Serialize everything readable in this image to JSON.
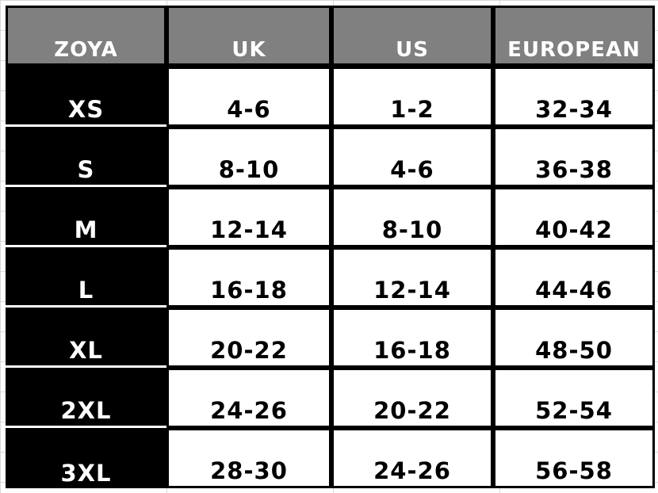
{
  "headers": [
    "ZOYA",
    "UK",
    "US",
    "EUROPEAN"
  ],
  "rows": [
    {
      "zoya": "XS",
      "uk": "4-6",
      "us": "1-2",
      "european": "32-34"
    },
    {
      "zoya": "S",
      "uk": "8-10",
      "us": "4-6",
      "european": "36-38"
    },
    {
      "zoya": "M",
      "uk": "12-14",
      "us": "8-10",
      "european": "40-42"
    },
    {
      "zoya": "L",
      "uk": "16-18",
      "us": "12-14",
      "european": "44-46"
    },
    {
      "zoya": "XL",
      "uk": "20-22",
      "us": "16-18",
      "european": "48-50"
    },
    {
      "zoya": "2XL",
      "uk": "24-26",
      "us": "20-22",
      "european": "52-54"
    },
    {
      "zoya": "3XL",
      "uk": "28-30",
      "us": "24-26",
      "european": "56-58"
    }
  ],
  "colors": {
    "header_bg": "#808080",
    "size_col_bg": "#000000",
    "text_dark": "#000000",
    "text_light": "#ffffff"
  }
}
